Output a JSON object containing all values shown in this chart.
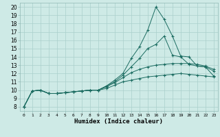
{
  "title": "",
  "xlabel": "Humidex (Indice chaleur)",
  "background_color": "#ceeae6",
  "grid_color": "#aacfcb",
  "line_color": "#1a6b60",
  "x_ticks": [
    0,
    1,
    2,
    3,
    4,
    5,
    6,
    7,
    8,
    9,
    10,
    11,
    12,
    13,
    14,
    15,
    16,
    17,
    18,
    19,
    20,
    21,
    22,
    23
  ],
  "y_ticks": [
    8,
    9,
    10,
    11,
    12,
    13,
    14,
    15,
    16,
    17,
    18,
    19,
    20
  ],
  "xlim": [
    -0.5,
    23.5
  ],
  "ylim": [
    7.5,
    20.5
  ],
  "series": [
    [
      8.0,
      9.9,
      10.0,
      9.6,
      9.6,
      9.7,
      9.8,
      9.9,
      10.0,
      10.0,
      10.5,
      11.2,
      12.0,
      13.8,
      15.2,
      17.2,
      20.0,
      18.5,
      16.5,
      14.1,
      14.0,
      12.9,
      12.8,
      11.7
    ],
    [
      8.0,
      9.9,
      10.0,
      9.6,
      9.6,
      9.7,
      9.8,
      9.9,
      10.0,
      10.0,
      10.5,
      11.0,
      11.8,
      12.8,
      13.8,
      15.0,
      15.5,
      16.5,
      14.2,
      14.0,
      13.1,
      12.9,
      12.8,
      12.3
    ],
    [
      8.0,
      9.9,
      10.0,
      9.6,
      9.6,
      9.7,
      9.8,
      9.9,
      10.0,
      10.0,
      10.4,
      10.9,
      11.5,
      12.1,
      12.5,
      12.8,
      13.0,
      13.1,
      13.2,
      13.2,
      13.2,
      13.1,
      12.9,
      12.5
    ],
    [
      8.0,
      9.9,
      10.0,
      9.6,
      9.6,
      9.7,
      9.8,
      9.9,
      10.0,
      10.0,
      10.2,
      10.6,
      11.0,
      11.2,
      11.4,
      11.6,
      11.7,
      11.8,
      11.9,
      12.0,
      11.9,
      11.8,
      11.7,
      11.6
    ]
  ]
}
